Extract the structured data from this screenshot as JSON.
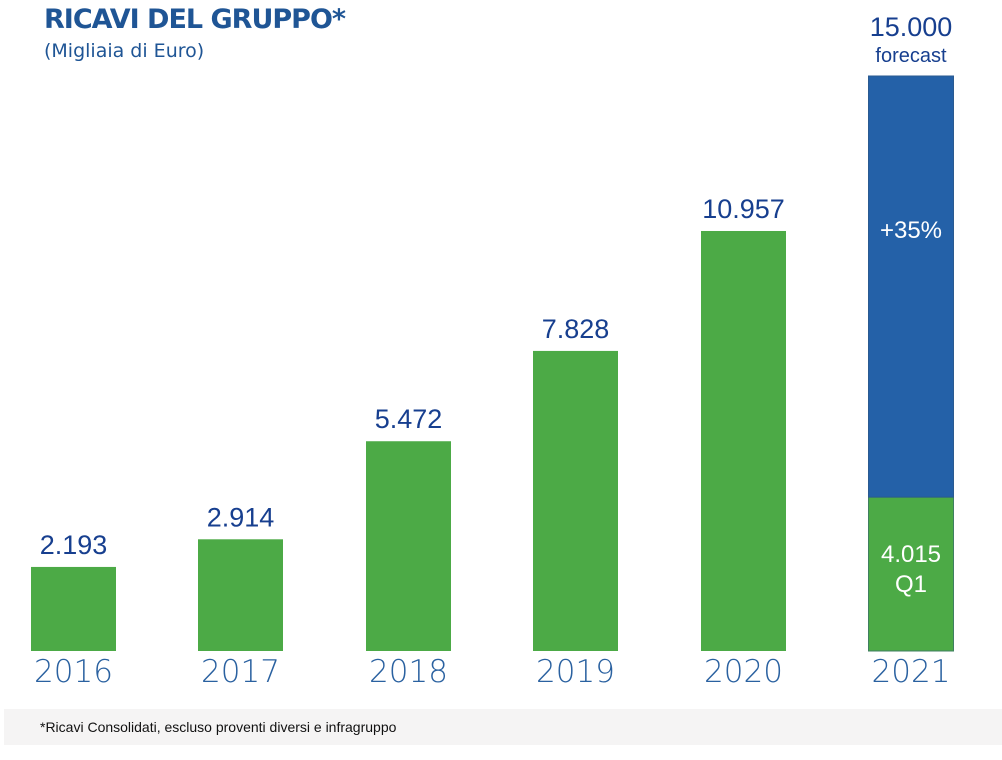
{
  "chart_data": {
    "type": "bar",
    "title": "RICAVI DEL GRUPPO*",
    "subtitle": "(Migliaia di Euro)",
    "xlabel": "",
    "ylabel": "",
    "ylim": [
      0,
      15000
    ],
    "grid": false,
    "categories": [
      "2016",
      "2017",
      "2018",
      "2019",
      "2020",
      "2021"
    ],
    "series": [
      {
        "name": "Ricavi",
        "values": [
          2193,
          2914,
          5472,
          7828,
          10957,
          4015
        ],
        "color": "#4caa46"
      },
      {
        "name": "Forecast",
        "values": [
          null,
          null,
          null,
          null,
          null,
          10985
        ],
        "color": "#2461a8"
      }
    ],
    "data_labels": [
      "2.193",
      "2.914",
      "5.472",
      "7.828",
      "10.957",
      "15.000"
    ],
    "forecast": {
      "year": "2021",
      "total": 15000,
      "total_label": "15.000",
      "total_sublabel": "forecast",
      "growth_label": "+35%",
      "q1_value": 4015,
      "q1_label": "4.015",
      "q1_sublabel": "Q1"
    },
    "footnote": "*Ricavi Consolidati, escluso proventi diversi e infragruppo"
  },
  "colors": {
    "bar_green": "#4caa46",
    "bar_blue": "#2461a8",
    "label_blue": "#173f8f",
    "title_blue": "#1f5595",
    "year_blue": "#2a61a0",
    "footnote_bg": "#f5f4f4"
  }
}
